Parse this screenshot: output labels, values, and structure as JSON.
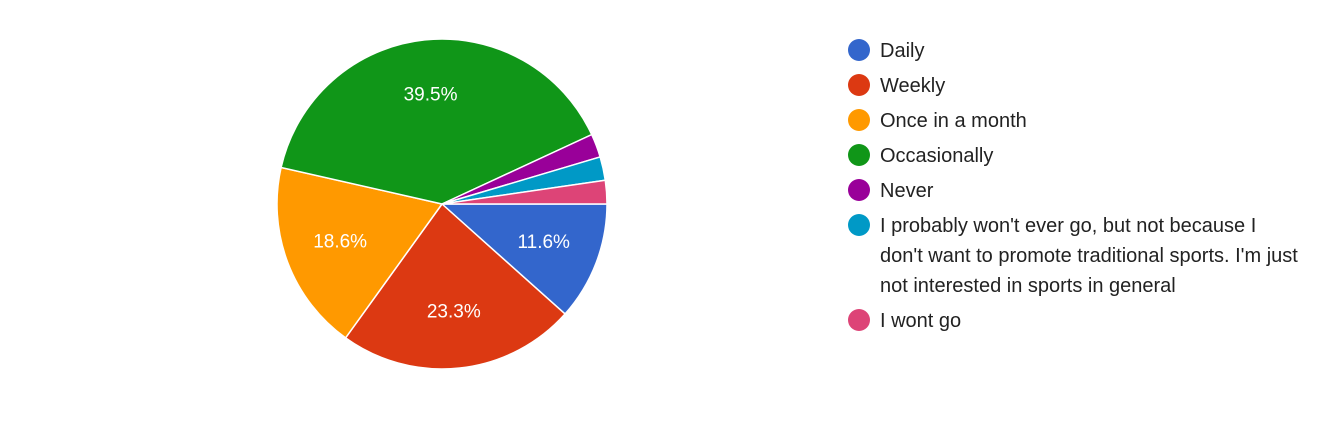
{
  "chart_data": {
    "type": "pie",
    "categories": [
      "Daily",
      "Weekly",
      "Once in a month",
      "Occasionally",
      "Never",
      "I probably won't ever go, but not because I don't want to promote traditional sports. I'm just not interested in sports in general",
      "I wont go"
    ],
    "values": [
      11.6,
      23.3,
      18.6,
      39.5,
      2.3,
      2.3,
      2.3
    ],
    "value_labels": [
      "11.6%",
      "23.3%",
      "18.6%",
      "39.5%",
      null,
      null,
      null
    ],
    "colors": [
      "#3366cc",
      "#dc3912",
      "#ff9900",
      "#109618",
      "#990099",
      "#0099c6",
      "#dd4477"
    ]
  }
}
